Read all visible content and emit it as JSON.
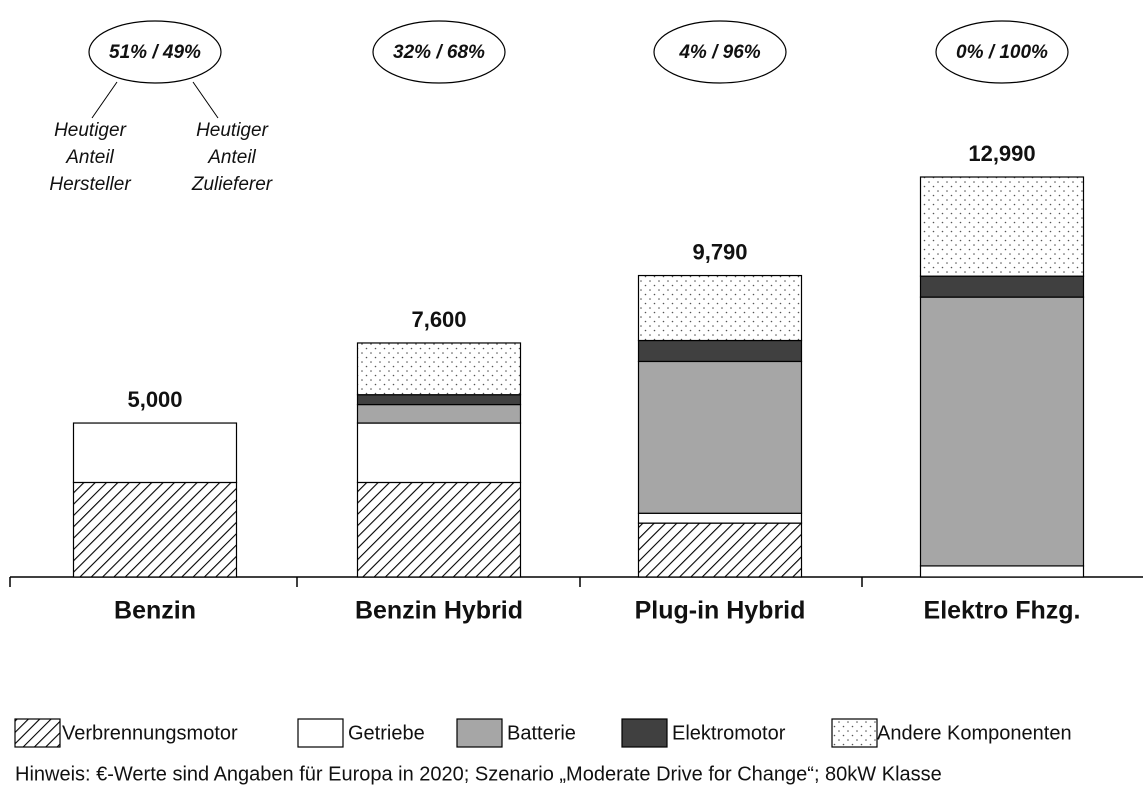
{
  "chart_data": {
    "type": "stacked_bar",
    "categories": [
      "Benzin",
      "Benzin Hybrid",
      "Plug-in Hybrid",
      "Elektro Fhzg."
    ],
    "series": [
      {
        "name": "Verbrennungsmotor",
        "color": "#000000",
        "pattern": "hatch",
        "values": [
          3070,
          3070,
          1750,
          0
        ]
      },
      {
        "name": "Getriebe",
        "color": "#ffffff",
        "values": [
          1930,
          1930,
          320,
          360
        ]
      },
      {
        "name": "Batterie",
        "color": "#a6a6a6",
        "values": [
          0,
          600,
          4930,
          8730
        ]
      },
      {
        "name": "Elektromotor",
        "color": "#404040",
        "values": [
          0,
          320,
          680,
          680
        ]
      },
      {
        "name": "Andere Komponenten",
        "color": "#555555",
        "pattern": "dots",
        "values": [
          0,
          1680,
          2110,
          3220
        ]
      }
    ],
    "totals": [
      5000,
      7600,
      9790,
      12990
    ],
    "total_labels": [
      "5,000",
      "7,600",
      "9,790",
      "12,990"
    ],
    "shares": [
      "51% / 49%",
      "32% / 68%",
      "4% / 96%",
      "0% / 100%"
    ],
    "annotations": [
      [
        "Heutiger",
        "Anteil",
        "Hersteller"
      ],
      [
        "Heutiger",
        "Anteil",
        "Zulieferer"
      ]
    ],
    "ylim": [
      0,
      13000
    ],
    "note": "Hinweis: €-Werte sind  Angaben für Europa in 2020; Szenario „Moderate Drive for Change“; 80kW Klasse"
  }
}
